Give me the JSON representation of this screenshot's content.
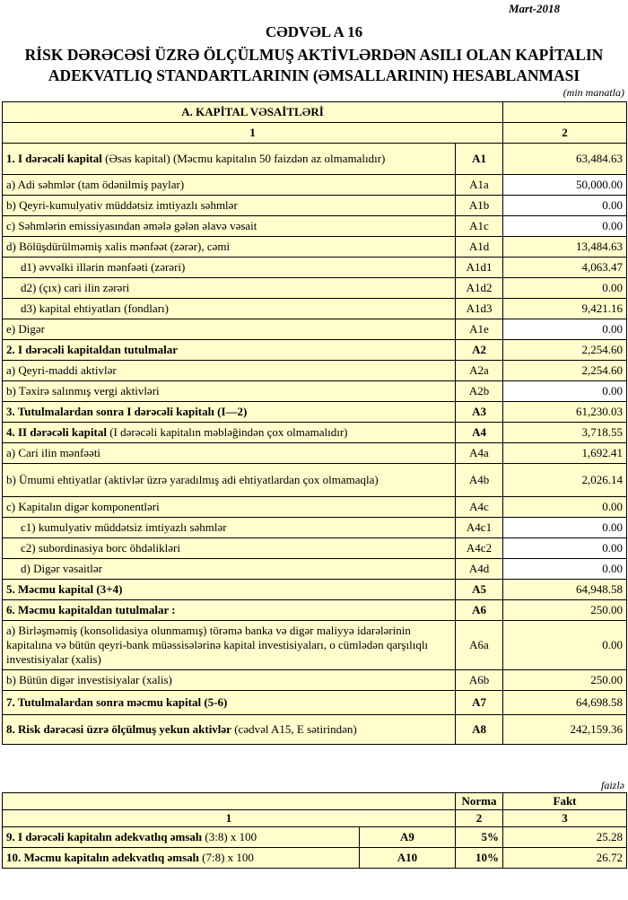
{
  "date": "Mart-2018",
  "title": "CƏDVƏL A 16",
  "subtitle_line1": "RİSK DƏRƏCƏSİ ÜZRƏ ÖLÇÜLMUŞ AKTİVLƏRDƏN ASILI OLAN KAPİTALIN",
  "subtitle_line2": "ADEKVATLIQ STANDARTLARININ (ƏMSALLARININ) HESABLANMASI",
  "unit": "(min manatla)",
  "section_header": "A. KAPİTAL VƏSAİTLƏRİ",
  "col1": "1",
  "col2": "2",
  "rows": [
    {
      "bold": "1. I dərəcəli kapital",
      "text": " (Əsas kapital) (Məcmu kapitalın 50 faizdən  az olmamalıdır)",
      "code": "A1",
      "code_bold": true,
      "value": "63,484.63",
      "h": 34
    },
    {
      "bold": "",
      "text": "a) Adi səhmlər (tam ödənilmiş paylar)",
      "code": "A1a",
      "value": "50,000.00",
      "white": true
    },
    {
      "bold": "",
      "text": "b) Qeyri-kumulyativ müddətsiz imtiyazlı səhmlər",
      "code": "A1b",
      "value": "0.00",
      "white": true
    },
    {
      "bold": "",
      "text": "c) Səhmlərin emissiyasından əmələ gələn  əlavə vəsait",
      "code": "A1c",
      "value": "0.00",
      "white": true
    },
    {
      "bold": "",
      "text": "d)  Bölüşdürülməmiş xalis mənfəət (zərər), cəmi",
      "code": "A1d",
      "value": "13,484.63"
    },
    {
      "bold": "",
      "text": "   d1) əvvəlki illərin mənfəəti (zərəri)",
      "code": "A1d1",
      "value": "4,063.47"
    },
    {
      "bold": "",
      "text": "   d2) (çıx) cari ilin zərəri",
      "code": "A1d2",
      "value": "0.00"
    },
    {
      "bold": "",
      "text": "   d3) kapital ehtiyatları (fondları)",
      "code": "A1d3",
      "value": "9,421.16"
    },
    {
      "bold": "",
      "text": "e) Digər",
      "code": "A1e",
      "value": "0.00",
      "white": true
    },
    {
      "bold": "2. I dərəcəli kapitaldan  tutulmalar",
      "text": "",
      "code": "A2",
      "code_bold": true,
      "value": "2,254.60"
    },
    {
      "bold": "",
      "text": "a) Qeyri-maddi aktivlər",
      "code": "A2a",
      "value": "2,254.60"
    },
    {
      "bold": "",
      "text": "b) Təxirə salınmış vergi aktivləri",
      "code": "A2b",
      "value": "0.00",
      "white": true
    },
    {
      "bold": "3. Tutulmalardan  sonra I dərəcəli kapitalı (I—2)",
      "text": "",
      "code": "A3",
      "code_bold": true,
      "value": "61,230.03"
    },
    {
      "bold": "4. II dərəcəli  kapital",
      "text": " (I dərəcəli  kapitalın  məbləğindən çox olmamalıdır)",
      "code": "A4",
      "code_bold": true,
      "value": "3,718.55"
    },
    {
      "bold": "",
      "text": "a) Cari ilin mənfəəti",
      "code": "A4a",
      "value": "1,692.41"
    },
    {
      "bold": "",
      "text": "b) Ümumi ehtiyatlar (aktivlər üzrə yaradılmış adi ehtiyatlardan çox olmamaqla)",
      "code": "A4b",
      "value": "2,026.14",
      "h": 36
    },
    {
      "bold": "",
      "text": "c)  Kapitalın digər komponentləri",
      "code": "A4c",
      "value": "0.00"
    },
    {
      "bold": "",
      "text": "   c1) kumulyativ müddətsiz imtiyazlı səhmlər",
      "code": "A4c1",
      "value": "0.00",
      "white": true
    },
    {
      "bold": "",
      "text": "   c2) subordinasiya borc öhdəlikləri",
      "code": "A4c2",
      "value": "0.00",
      "white": true
    },
    {
      "bold": "",
      "text": "   d) Digər vəsaitlər",
      "code": "A4d",
      "value": "0.00",
      "white": true
    },
    {
      "bold": "5. Məcmu kapital (3+4)",
      "text": "",
      "code": "A5",
      "code_bold": true,
      "value": "64,948.58"
    },
    {
      "bold": "6. Məcmu kapitaldan tutulmalar :",
      "text": "",
      "code": "A6",
      "code_bold": true,
      "value": "250.00"
    },
    {
      "bold": "",
      "text": "a)   Birləşməmiş (konsolidasiya olunmamış) törəmə banka və digər maliyyə idarələrinin kapitalına və bütün qeyri-bank müəssisələrinə kapital investisiyaları, o cümlədən qarşılıqlı investisiyalar (xalis)",
      "code": "A6a",
      "value": "0.00",
      "h": 54
    },
    {
      "bold": "",
      "text": "b)    Bütün digər investisiyalar (xalis)",
      "code": "A6b",
      "value": "250.00"
    },
    {
      "bold": "7. Tutulmalardan  sonra məcmu kapital (5-6)",
      "text": "",
      "code": "A7",
      "code_bold": true,
      "value": "64,698.58",
      "h": 26
    },
    {
      "bold": "8. Risk dərəcəsi üzrə ölçülmuş  yekun aktivlər",
      "text": "  (cədvəl A15, E sətirindən)",
      "code": "A8",
      "code_bold": true,
      "value": "242,159.36",
      "h": 32
    }
  ],
  "unit2": "faizlə",
  "ratio_headers": {
    "norma": "Norma",
    "fakt": "Fakt",
    "c1": "1",
    "c2": "2",
    "c3": "3"
  },
  "ratios": [
    {
      "bold": "9. I dərəcəli  kapitalın  adekvatlıq əmsalı",
      "text": " (3:8) x 100",
      "code": "A9",
      "norma": "5%",
      "fakt": "25.28"
    },
    {
      "bold": "10. Məcmu kapitalın  adekvatlıq  əmsalı",
      "text": " (7:8) x 100",
      "code": "A10",
      "norma": "10%",
      "fakt": "26.72"
    }
  ]
}
